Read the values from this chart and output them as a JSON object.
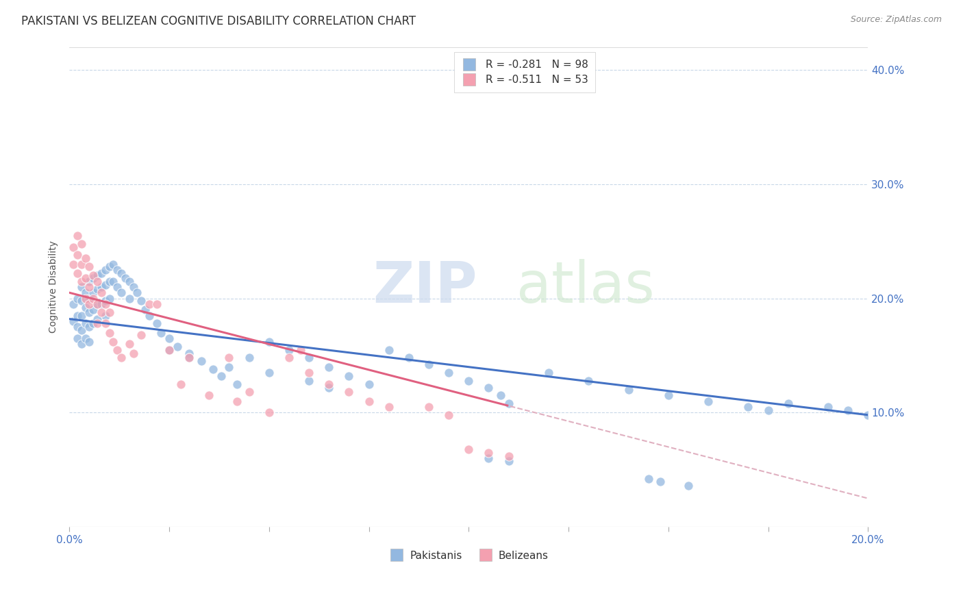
{
  "title": "PAKISTANI VS BELIZEAN COGNITIVE DISABILITY CORRELATION CHART",
  "source": "Source: ZipAtlas.com",
  "ylabel_label": "Cognitive Disability",
  "x_min": 0.0,
  "x_max": 0.2,
  "y_min": 0.0,
  "y_max": 0.42,
  "x_ticks": [
    0.0,
    0.025,
    0.05,
    0.075,
    0.1,
    0.125,
    0.15,
    0.175,
    0.2
  ],
  "x_tick_labels": [
    "0.0%",
    "",
    "",
    "",
    "",
    "",
    "",
    "",
    "20.0%"
  ],
  "y_ticks": [
    0.1,
    0.2,
    0.3,
    0.4
  ],
  "y_tick_labels": [
    "10.0%",
    "20.0%",
    "30.0%",
    "40.0%"
  ],
  "pakistani_color": "#93b8e0",
  "belizean_color": "#f4a0b0",
  "pakistani_line_color": "#4472c4",
  "belizean_line_color": "#e06080",
  "belizean_line_dashed_color": "#e0b0c0",
  "R_pakistani": -0.281,
  "N_pakistani": 98,
  "R_belizean": -0.511,
  "N_belizean": 53,
  "pak_intercept": 0.182,
  "pak_slope": -0.42,
  "bel_intercept": 0.205,
  "bel_slope": -0.9,
  "pakistani_x": [
    0.001,
    0.001,
    0.002,
    0.002,
    0.002,
    0.002,
    0.003,
    0.003,
    0.003,
    0.003,
    0.003,
    0.004,
    0.004,
    0.004,
    0.004,
    0.005,
    0.005,
    0.005,
    0.005,
    0.005,
    0.006,
    0.006,
    0.006,
    0.006,
    0.007,
    0.007,
    0.007,
    0.007,
    0.008,
    0.008,
    0.008,
    0.009,
    0.009,
    0.009,
    0.009,
    0.01,
    0.01,
    0.01,
    0.011,
    0.011,
    0.012,
    0.012,
    0.013,
    0.013,
    0.014,
    0.015,
    0.015,
    0.016,
    0.017,
    0.018,
    0.019,
    0.02,
    0.022,
    0.023,
    0.025,
    0.027,
    0.03,
    0.033,
    0.036,
    0.038,
    0.042,
    0.045,
    0.05,
    0.055,
    0.06,
    0.065,
    0.07,
    0.075,
    0.08,
    0.085,
    0.09,
    0.095,
    0.1,
    0.105,
    0.108,
    0.11,
    0.12,
    0.13,
    0.14,
    0.15,
    0.16,
    0.17,
    0.175,
    0.18,
    0.19,
    0.195,
    0.2,
    0.025,
    0.03,
    0.04,
    0.05,
    0.06,
    0.065,
    0.105,
    0.11,
    0.145,
    0.148,
    0.155
  ],
  "pakistani_y": [
    0.195,
    0.18,
    0.2,
    0.185,
    0.175,
    0.165,
    0.21,
    0.198,
    0.185,
    0.172,
    0.16,
    0.205,
    0.192,
    0.178,
    0.165,
    0.215,
    0.2,
    0.188,
    0.175,
    0.162,
    0.218,
    0.205,
    0.19,
    0.178,
    0.22,
    0.208,
    0.195,
    0.182,
    0.222,
    0.21,
    0.195,
    0.225,
    0.212,
    0.198,
    0.185,
    0.228,
    0.215,
    0.2,
    0.23,
    0.215,
    0.225,
    0.21,
    0.222,
    0.205,
    0.218,
    0.215,
    0.2,
    0.21,
    0.205,
    0.198,
    0.19,
    0.185,
    0.178,
    0.17,
    0.165,
    0.158,
    0.152,
    0.145,
    0.138,
    0.132,
    0.125,
    0.148,
    0.162,
    0.155,
    0.148,
    0.14,
    0.132,
    0.125,
    0.155,
    0.148,
    0.142,
    0.135,
    0.128,
    0.122,
    0.115,
    0.108,
    0.135,
    0.128,
    0.12,
    0.115,
    0.11,
    0.105,
    0.102,
    0.108,
    0.105,
    0.102,
    0.098,
    0.155,
    0.148,
    0.14,
    0.135,
    0.128,
    0.122,
    0.06,
    0.058,
    0.042,
    0.04,
    0.036
  ],
  "belizean_x": [
    0.001,
    0.001,
    0.002,
    0.002,
    0.002,
    0.003,
    0.003,
    0.003,
    0.004,
    0.004,
    0.004,
    0.005,
    0.005,
    0.005,
    0.006,
    0.006,
    0.007,
    0.007,
    0.007,
    0.008,
    0.008,
    0.009,
    0.009,
    0.01,
    0.01,
    0.011,
    0.012,
    0.013,
    0.015,
    0.016,
    0.018,
    0.02,
    0.022,
    0.025,
    0.028,
    0.03,
    0.035,
    0.04,
    0.042,
    0.045,
    0.05,
    0.055,
    0.058,
    0.06,
    0.065,
    0.07,
    0.075,
    0.08,
    0.09,
    0.095,
    0.1,
    0.105,
    0.11
  ],
  "belizean_y": [
    0.245,
    0.23,
    0.255,
    0.238,
    0.222,
    0.248,
    0.23,
    0.215,
    0.235,
    0.218,
    0.2,
    0.228,
    0.21,
    0.195,
    0.22,
    0.2,
    0.215,
    0.195,
    0.178,
    0.205,
    0.188,
    0.195,
    0.178,
    0.188,
    0.17,
    0.162,
    0.155,
    0.148,
    0.16,
    0.152,
    0.168,
    0.195,
    0.195,
    0.155,
    0.125,
    0.148,
    0.115,
    0.148,
    0.11,
    0.118,
    0.1,
    0.148,
    0.155,
    0.135,
    0.125,
    0.118,
    0.11,
    0.105,
    0.105,
    0.098,
    0.068,
    0.065,
    0.062
  ]
}
